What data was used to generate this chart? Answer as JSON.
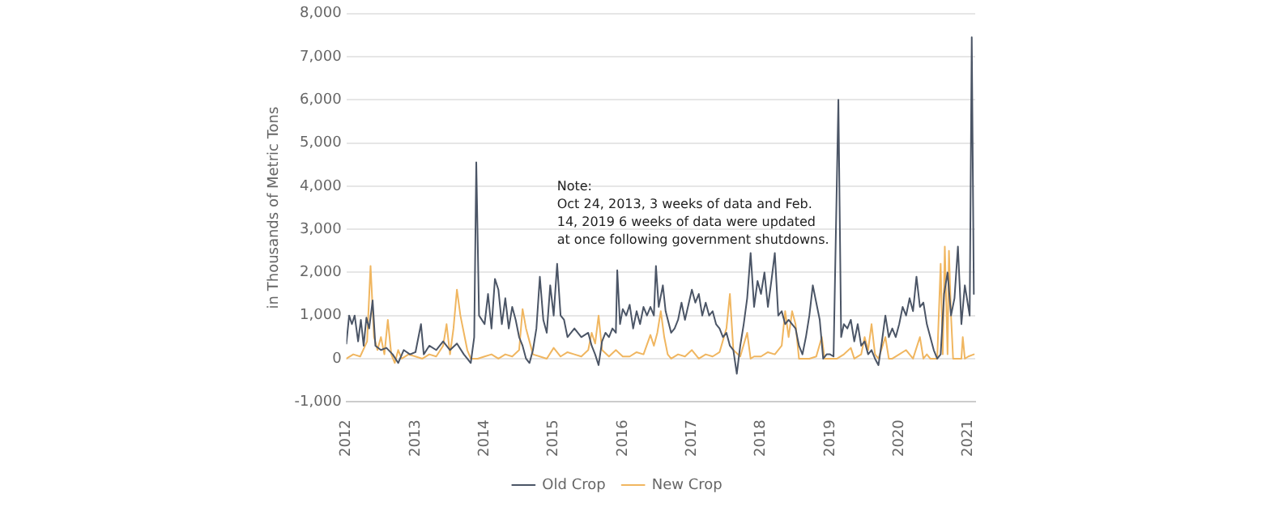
{
  "chart_data": {
    "type": "line",
    "ylabel": "in Thousands of Metric Tons",
    "annotations": [
      "Note:\nOct 24, 2013, 3 weeks of data and Feb. 14, 2019 6 weeks of data were updated at once following government shutdowns."
    ],
    "xlim": [
      2012,
      2021.1
    ],
    "xticks": [
      2012,
      2013,
      2014,
      2015,
      2016,
      2017,
      2018,
      2019,
      2020,
      2021
    ],
    "ylim": [
      -1000,
      8000
    ],
    "yticks": [
      {
        "value": -1000,
        "label": "-1,000"
      },
      0,
      {
        "value": 1000,
        "label": "1,000"
      },
      {
        "value": 2000,
        "label": "2,000"
      },
      {
        "value": 3000,
        "label": "3,000"
      },
      {
        "value": 4000,
        "label": "4,000"
      },
      {
        "value": 5000,
        "label": "5,000"
      },
      {
        "value": 6000,
        "label": "6,000"
      },
      {
        "value": 7000,
        "label": "7,000"
      },
      {
        "value": 8000,
        "label": "8,000"
      }
    ],
    "grid": "y",
    "legend": "bottom",
    "marker": "none",
    "line_style": "solid",
    "series": [
      {
        "name": "Old Crop",
        "color": "#4b5566",
        "x": [
          2012.0,
          2012.04,
          2012.08,
          2012.12,
          2012.17,
          2012.21,
          2012.25,
          2012.29,
          2012.33,
          2012.38,
          2012.42,
          2012.5,
          2012.58,
          2012.67,
          2012.75,
          2012.83,
          2012.92,
          2013.0,
          2013.08,
          2013.12,
          2013.2,
          2013.3,
          2013.4,
          2013.5,
          2013.6,
          2013.7,
          2013.75,
          2013.8,
          2013.85,
          2013.88,
          2013.92,
          2014.0,
          2014.05,
          2014.1,
          2014.15,
          2014.2,
          2014.25,
          2014.3,
          2014.35,
          2014.4,
          2014.45,
          2014.5,
          2014.55,
          2014.6,
          2014.65,
          2014.7,
          2014.75,
          2014.8,
          2014.85,
          2014.9,
          2014.95,
          2015.0,
          2015.05,
          2015.1,
          2015.15,
          2015.2,
          2015.3,
          2015.4,
          2015.5,
          2015.55,
          2015.6,
          2015.65,
          2015.7,
          2015.75,
          2015.8,
          2015.85,
          2015.9,
          2015.92,
          2015.96,
          2016.0,
          2016.05,
          2016.1,
          2016.15,
          2016.2,
          2016.25,
          2016.3,
          2016.35,
          2016.4,
          2016.45,
          2016.48,
          2016.52,
          2016.58,
          2016.62,
          2016.7,
          2016.75,
          2016.8,
          2016.85,
          2016.9,
          2017.0,
          2017.05,
          2017.1,
          2017.15,
          2017.2,
          2017.25,
          2017.3,
          2017.35,
          2017.4,
          2017.45,
          2017.5,
          2017.55,
          2017.6,
          2017.65,
          2017.7,
          2017.75,
          2017.8,
          2017.85,
          2017.9,
          2017.95,
          2018.0,
          2018.05,
          2018.1,
          2018.15,
          2018.2,
          2018.25,
          2018.3,
          2018.35,
          2018.4,
          2018.45,
          2018.5,
          2018.55,
          2018.6,
          2018.65,
          2018.7,
          2018.75,
          2018.8,
          2018.85,
          2018.9,
          2018.95,
          2019.0,
          2019.05,
          2019.12,
          2019.16,
          2019.2,
          2019.25,
          2019.3,
          2019.35,
          2019.4,
          2019.45,
          2019.5,
          2019.55,
          2019.6,
          2019.65,
          2019.7,
          2019.75,
          2019.8,
          2019.85,
          2019.9,
          2019.95,
          2020.0,
          2020.05,
          2020.1,
          2020.15,
          2020.2,
          2020.25,
          2020.3,
          2020.35,
          2020.4,
          2020.45,
          2020.5,
          2020.55,
          2020.6,
          2020.65,
          2020.7,
          2020.75,
          2020.8,
          2020.85,
          2020.9,
          2020.95,
          2021.0,
          2021.02,
          2021.05,
          2021.08
        ],
        "values": [
          350,
          1000,
          800,
          1000,
          400,
          900,
          300,
          950,
          700,
          1350,
          300,
          200,
          250,
          100,
          -100,
          200,
          100,
          150,
          800,
          100,
          300,
          200,
          400,
          200,
          350,
          100,
          0,
          -100,
          500,
          4550,
          1000,
          800,
          1500,
          700,
          1850,
          1600,
          800,
          1400,
          700,
          1200,
          900,
          500,
          300,
          0,
          -100,
          200,
          700,
          1900,
          900,
          600,
          1700,
          1000,
          2200,
          1000,
          900,
          500,
          700,
          500,
          600,
          300,
          100,
          -150,
          400,
          600,
          500,
          700,
          600,
          2050,
          800,
          1150,
          1000,
          1250,
          700,
          1100,
          800,
          1200,
          1000,
          1200,
          1000,
          2150,
          1200,
          1700,
          1100,
          600,
          700,
          900,
          1300,
          900,
          1600,
          1300,
          1500,
          1000,
          1300,
          1000,
          1100,
          800,
          700,
          500,
          600,
          300,
          200,
          -350,
          300,
          800,
          1400,
          2450,
          1200,
          1800,
          1500,
          2000,
          1200,
          1800,
          2450,
          1000,
          1100,
          800,
          900,
          800,
          700,
          300,
          100,
          500,
          1000,
          1700,
          1300,
          900,
          0,
          100,
          100,
          50,
          6000,
          500,
          800,
          700,
          900,
          400,
          800,
          300,
          400,
          100,
          200,
          0,
          -150,
          400,
          1000,
          500,
          700,
          500,
          800,
          1200,
          1000,
          1400,
          1100,
          1900,
          1200,
          1300,
          800,
          500,
          200,
          0,
          100,
          1500,
          2000,
          1000,
          1400,
          2600,
          800,
          1700,
          1200,
          1000,
          7450,
          1500
        ]
      },
      {
        "name": "New Crop",
        "color": "#f0b660",
        "x": [
          2012.0,
          2012.1,
          2012.2,
          2012.3,
          2012.35,
          2012.4,
          2012.45,
          2012.5,
          2012.55,
          2012.6,
          2012.65,
          2012.7,
          2012.75,
          2012.8,
          2012.9,
          2013.0,
          2013.1,
          2013.2,
          2013.3,
          2013.4,
          2013.45,
          2013.5,
          2013.55,
          2013.6,
          2013.65,
          2013.7,
          2013.75,
          2013.8,
          2013.9,
          2014.0,
          2014.1,
          2014.2,
          2014.3,
          2014.4,
          2014.5,
          2014.55,
          2014.6,
          2014.65,
          2014.7,
          2014.8,
          2014.9,
          2015.0,
          2015.1,
          2015.2,
          2015.3,
          2015.4,
          2015.5,
          2015.55,
          2015.6,
          2015.65,
          2015.7,
          2015.8,
          2015.9,
          2016.0,
          2016.1,
          2016.2,
          2016.3,
          2016.4,
          2016.45,
          2016.5,
          2016.55,
          2016.6,
          2016.65,
          2016.7,
          2016.8,
          2016.9,
          2017.0,
          2017.1,
          2017.2,
          2017.3,
          2017.4,
          2017.5,
          2017.55,
          2017.6,
          2017.7,
          2017.8,
          2017.85,
          2017.9,
          2018.0,
          2018.1,
          2018.2,
          2018.3,
          2018.35,
          2018.4,
          2018.45,
          2018.5,
          2018.55,
          2018.7,
          2018.8,
          2018.88,
          2018.92,
          2019.0,
          2019.1,
          2019.2,
          2019.3,
          2019.35,
          2019.45,
          2019.5,
          2019.55,
          2019.6,
          2019.65,
          2019.7,
          2019.8,
          2019.85,
          2019.9,
          2020.0,
          2020.1,
          2020.2,
          2020.3,
          2020.35,
          2020.4,
          2020.45,
          2020.55,
          2020.6,
          2020.63,
          2020.66,
          2020.7,
          2020.72,
          2020.75,
          2020.78,
          2020.9,
          2020.92,
          2020.95,
          2021.0,
          2021.08
        ],
        "values": [
          0,
          100,
          50,
          400,
          2150,
          500,
          200,
          500,
          100,
          900,
          100,
          -100,
          200,
          0,
          100,
          50,
          0,
          100,
          50,
          300,
          800,
          100,
          700,
          1600,
          1000,
          600,
          200,
          0,
          0,
          50,
          100,
          0,
          100,
          50,
          200,
          1150,
          700,
          400,
          100,
          50,
          0,
          250,
          50,
          150,
          100,
          50,
          200,
          600,
          350,
          1000,
          200,
          50,
          200,
          50,
          50,
          150,
          100,
          550,
          300,
          600,
          1100,
          500,
          100,
          0,
          100,
          50,
          200,
          0,
          100,
          50,
          150,
          700,
          1500,
          200,
          50,
          600,
          0,
          50,
          50,
          150,
          100,
          300,
          1100,
          500,
          1100,
          800,
          0,
          0,
          50,
          500,
          0,
          0,
          0,
          100,
          250,
          0,
          100,
          500,
          200,
          800,
          100,
          0,
          500,
          0,
          0,
          100,
          200,
          0,
          500,
          0,
          100,
          0,
          0,
          2200,
          100,
          2600,
          100,
          2500,
          1000,
          0,
          0,
          500,
          0,
          50,
          100
        ]
      }
    ]
  }
}
